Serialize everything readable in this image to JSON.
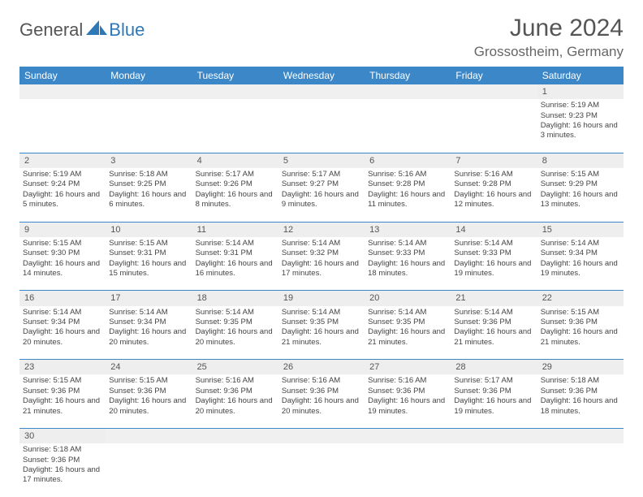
{
  "brand": {
    "part1": "General",
    "part2": "Blue"
  },
  "title": "June 2024",
  "location": "Grossostheim, Germany",
  "colors": {
    "header_bg": "#3b87c8",
    "header_text": "#ffffff",
    "daynum_bg": "#eeeeee",
    "border": "#3b87c8",
    "text": "#444444",
    "brand_gray": "#555555",
    "brand_blue": "#2f78b8"
  },
  "weekdays": [
    "Sunday",
    "Monday",
    "Tuesday",
    "Wednesday",
    "Thursday",
    "Friday",
    "Saturday"
  ],
  "weeks": [
    {
      "nums": [
        "",
        "",
        "",
        "",
        "",
        "",
        "1"
      ],
      "cells": [
        "",
        "",
        "",
        "",
        "",
        "",
        "Sunrise: 5:19 AM\nSunset: 9:23 PM\nDaylight: 16 hours and 3 minutes."
      ]
    },
    {
      "nums": [
        "2",
        "3",
        "4",
        "5",
        "6",
        "7",
        "8"
      ],
      "cells": [
        "Sunrise: 5:19 AM\nSunset: 9:24 PM\nDaylight: 16 hours and 5 minutes.",
        "Sunrise: 5:18 AM\nSunset: 9:25 PM\nDaylight: 16 hours and 6 minutes.",
        "Sunrise: 5:17 AM\nSunset: 9:26 PM\nDaylight: 16 hours and 8 minutes.",
        "Sunrise: 5:17 AM\nSunset: 9:27 PM\nDaylight: 16 hours and 9 minutes.",
        "Sunrise: 5:16 AM\nSunset: 9:28 PM\nDaylight: 16 hours and 11 minutes.",
        "Sunrise: 5:16 AM\nSunset: 9:28 PM\nDaylight: 16 hours and 12 minutes.",
        "Sunrise: 5:15 AM\nSunset: 9:29 PM\nDaylight: 16 hours and 13 minutes."
      ]
    },
    {
      "nums": [
        "9",
        "10",
        "11",
        "12",
        "13",
        "14",
        "15"
      ],
      "cells": [
        "Sunrise: 5:15 AM\nSunset: 9:30 PM\nDaylight: 16 hours and 14 minutes.",
        "Sunrise: 5:15 AM\nSunset: 9:31 PM\nDaylight: 16 hours and 15 minutes.",
        "Sunrise: 5:14 AM\nSunset: 9:31 PM\nDaylight: 16 hours and 16 minutes.",
        "Sunrise: 5:14 AM\nSunset: 9:32 PM\nDaylight: 16 hours and 17 minutes.",
        "Sunrise: 5:14 AM\nSunset: 9:33 PM\nDaylight: 16 hours and 18 minutes.",
        "Sunrise: 5:14 AM\nSunset: 9:33 PM\nDaylight: 16 hours and 19 minutes.",
        "Sunrise: 5:14 AM\nSunset: 9:34 PM\nDaylight: 16 hours and 19 minutes."
      ]
    },
    {
      "nums": [
        "16",
        "17",
        "18",
        "19",
        "20",
        "21",
        "22"
      ],
      "cells": [
        "Sunrise: 5:14 AM\nSunset: 9:34 PM\nDaylight: 16 hours and 20 minutes.",
        "Sunrise: 5:14 AM\nSunset: 9:34 PM\nDaylight: 16 hours and 20 minutes.",
        "Sunrise: 5:14 AM\nSunset: 9:35 PM\nDaylight: 16 hours and 20 minutes.",
        "Sunrise: 5:14 AM\nSunset: 9:35 PM\nDaylight: 16 hours and 21 minutes.",
        "Sunrise: 5:14 AM\nSunset: 9:35 PM\nDaylight: 16 hours and 21 minutes.",
        "Sunrise: 5:14 AM\nSunset: 9:36 PM\nDaylight: 16 hours and 21 minutes.",
        "Sunrise: 5:15 AM\nSunset: 9:36 PM\nDaylight: 16 hours and 21 minutes."
      ]
    },
    {
      "nums": [
        "23",
        "24",
        "25",
        "26",
        "27",
        "28",
        "29"
      ],
      "cells": [
        "Sunrise: 5:15 AM\nSunset: 9:36 PM\nDaylight: 16 hours and 21 minutes.",
        "Sunrise: 5:15 AM\nSunset: 9:36 PM\nDaylight: 16 hours and 20 minutes.",
        "Sunrise: 5:16 AM\nSunset: 9:36 PM\nDaylight: 16 hours and 20 minutes.",
        "Sunrise: 5:16 AM\nSunset: 9:36 PM\nDaylight: 16 hours and 20 minutes.",
        "Sunrise: 5:16 AM\nSunset: 9:36 PM\nDaylight: 16 hours and 19 minutes.",
        "Sunrise: 5:17 AM\nSunset: 9:36 PM\nDaylight: 16 hours and 19 minutes.",
        "Sunrise: 5:18 AM\nSunset: 9:36 PM\nDaylight: 16 hours and 18 minutes."
      ]
    },
    {
      "nums": [
        "30",
        "",
        "",
        "",
        "",
        "",
        ""
      ],
      "cells": [
        "Sunrise: 5:18 AM\nSunset: 9:36 PM\nDaylight: 16 hours and 17 minutes.",
        "",
        "",
        "",
        "",
        "",
        ""
      ]
    }
  ]
}
